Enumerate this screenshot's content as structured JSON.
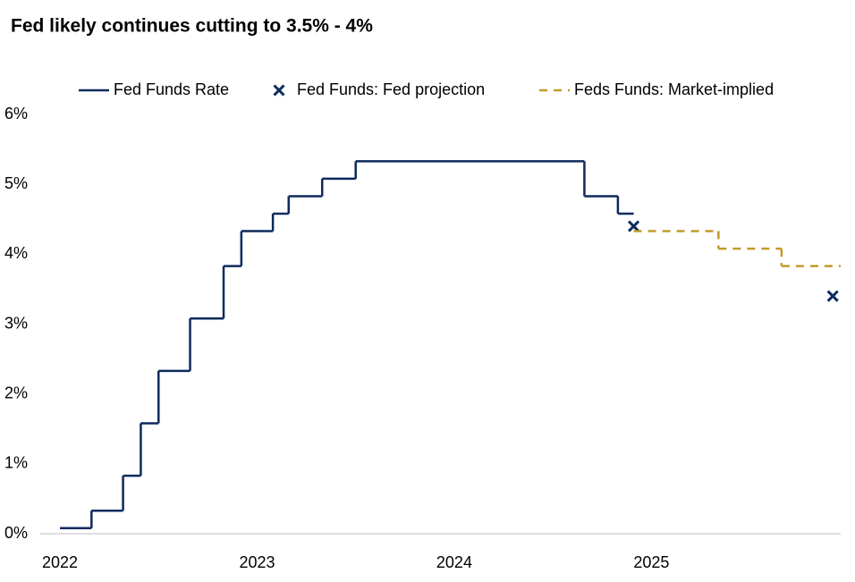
{
  "chart_data": {
    "type": "line",
    "title": "Fed likely continues cutting to 3.5% - 4%",
    "xlim": [
      2021.9,
      2025.96
    ],
    "xticks": [
      2022,
      2023,
      2024,
      2025
    ],
    "ylim": [
      0,
      6
    ],
    "yticks": [
      {
        "value": 0,
        "label": "0%"
      },
      {
        "value": 1,
        "label": "1%"
      },
      {
        "value": 2,
        "label": "2%"
      },
      {
        "value": 3,
        "label": "3%"
      },
      {
        "value": 4,
        "label": "4%"
      },
      {
        "value": 5,
        "label": "5%"
      },
      {
        "value": 6,
        "label": "6%"
      }
    ],
    "grid": false,
    "legend": "top",
    "series": [
      {
        "name": "Fed Funds Rate",
        "color": "#0d2a5c",
        "step": true,
        "x": [
          2022.0,
          2022.16,
          2022.32,
          2022.41,
          2022.5,
          2022.66,
          2022.83,
          2022.92,
          2023.08,
          2023.16,
          2023.33,
          2023.5,
          2024.66,
          2024.83,
          2024.91
        ],
        "values": [
          0.08,
          0.33,
          0.83,
          1.58,
          2.33,
          3.08,
          3.83,
          4.33,
          4.58,
          4.83,
          5.08,
          5.33,
          4.83,
          4.58,
          4.58
        ]
      },
      {
        "name": "Fed Funds: Fed projection",
        "color": "#0d2a5c",
        "marker": "x",
        "x": [
          2024.91,
          2025.92
        ],
        "values": [
          4.4,
          3.4
        ]
      },
      {
        "name": "Feds Funds: Market-implied",
        "color": "#c39a2b",
        "step": true,
        "dashed": true,
        "x": [
          2024.91,
          2025.34,
          2025.66,
          2025.96
        ],
        "values": [
          4.33,
          4.08,
          3.83,
          3.83
        ]
      }
    ]
  }
}
